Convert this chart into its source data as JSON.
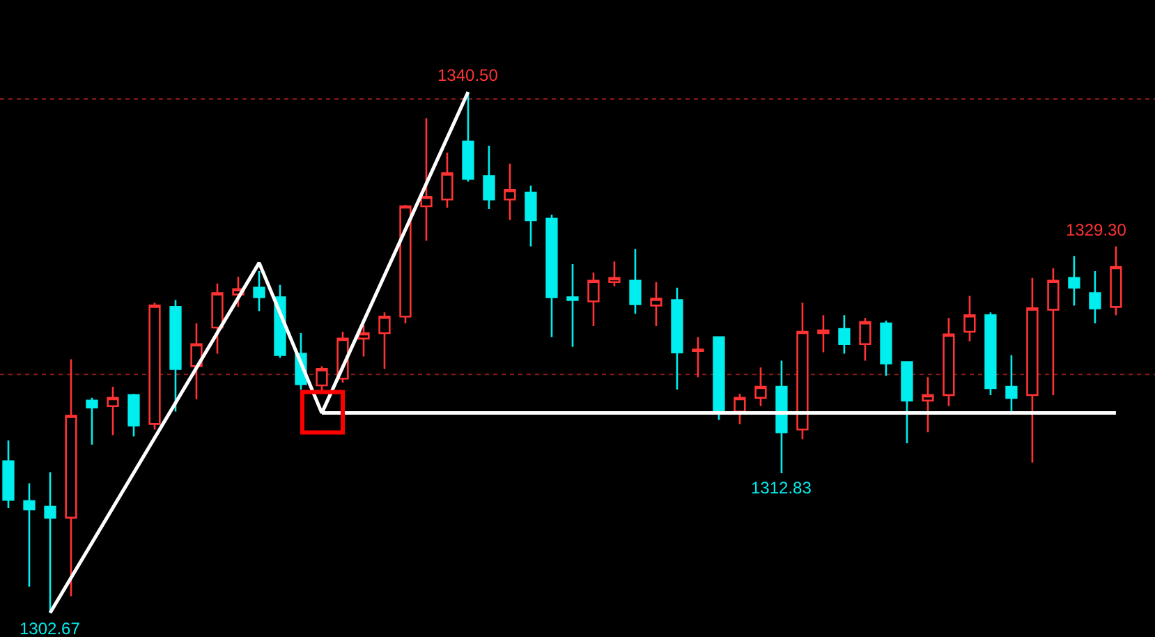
{
  "chart_data": {
    "type": "candlestick",
    "categories": [
      null,
      null,
      null,
      null,
      null,
      null,
      null,
      null,
      null,
      null,
      null,
      null,
      null,
      null,
      null,
      null,
      null,
      null,
      null,
      null,
      null,
      null,
      null,
      null,
      null,
      null,
      null,
      null,
      null,
      null,
      null,
      null,
      null,
      null,
      null,
      null,
      null,
      null,
      null,
      null,
      null,
      null,
      null,
      null,
      null,
      null,
      null,
      null,
      null,
      null,
      null,
      null,
      null,
      null
    ],
    "ohlc": [
      [
        1313.7,
        1315.2,
        1310.3,
        1310.9
      ],
      [
        1310.8,
        1312.1,
        1304.6,
        1310.2
      ],
      [
        1310.4,
        1312.9,
        1302.67,
        1309.6
      ],
      [
        1309.6,
        1321.1,
        1303.9,
        1317.0
      ],
      [
        1318.1,
        1318.3,
        1314.9,
        1317.6
      ],
      [
        1317.7,
        1319.1,
        1315.6,
        1318.3
      ],
      [
        1318.5,
        1318.6,
        1315.5,
        1316.3
      ],
      [
        1316.4,
        1325.2,
        1316.0,
        1325.0
      ],
      [
        1324.9,
        1325.4,
        1317.3,
        1320.4
      ],
      [
        1320.6,
        1323.7,
        1318.2,
        1322.2
      ],
      [
        1323.4,
        1326.6,
        1321.5,
        1325.9
      ],
      [
        1325.8,
        1327.1,
        1324.9,
        1326.2
      ],
      [
        1326.3,
        1327.5,
        1324.6,
        1325.6
      ],
      [
        1325.6,
        1326.5,
        1321.2,
        1321.4
      ],
      [
        1321.5,
        1323.0,
        1318.9,
        1319.3
      ],
      [
        1319.2,
        1320.6,
        1318.6,
        1320.4
      ],
      [
        1319.7,
        1323.1,
        1319.4,
        1322.6
      ],
      [
        1322.6,
        1323.6,
        1321.3,
        1323.0
      ],
      [
        1323.0,
        1324.5,
        1320.4,
        1324.2
      ],
      [
        1324.2,
        1332.3,
        1323.7,
        1332.2
      ],
      [
        1332.2,
        1338.6,
        1329.7,
        1332.9
      ],
      [
        1332.7,
        1336.1,
        1332.1,
        1334.6
      ],
      [
        1336.9,
        1340.5,
        1334.0,
        1334.2
      ],
      [
        1334.4,
        1336.6,
        1332.0,
        1332.7
      ],
      [
        1332.7,
        1335.3,
        1331.2,
        1333.4
      ],
      [
        1333.2,
        1333.7,
        1329.3,
        1331.2
      ],
      [
        1331.3,
        1331.6,
        1322.7,
        1325.6
      ],
      [
        1325.6,
        1328.0,
        1322.0,
        1325.4
      ],
      [
        1325.3,
        1327.4,
        1323.5,
        1326.8
      ],
      [
        1326.7,
        1328.2,
        1326.4,
        1327.0
      ],
      [
        1326.8,
        1329.1,
        1324.4,
        1325.1
      ],
      [
        1325.0,
        1326.7,
        1323.5,
        1325.5
      ],
      [
        1325.4,
        1326.3,
        1318.9,
        1321.6
      ],
      [
        1321.7,
        1322.7,
        1319.8,
        1321.8
      ],
      [
        1322.7,
        1322.7,
        1316.7,
        1317.3
      ],
      [
        1317.3,
        1318.6,
        1316.4,
        1318.3
      ],
      [
        1318.3,
        1320.5,
        1317.7,
        1319.1
      ],
      [
        1319.1,
        1321.0,
        1312.83,
        1315.8
      ],
      [
        1316.0,
        1325.2,
        1315.3,
        1323.1
      ],
      [
        1323.0,
        1324.3,
        1321.6,
        1323.2
      ],
      [
        1323.3,
        1324.3,
        1321.5,
        1322.2
      ],
      [
        1322.2,
        1324.1,
        1321.0,
        1323.8
      ],
      [
        1323.7,
        1323.9,
        1319.9,
        1320.8
      ],
      [
        1320.9,
        1320.9,
        1315.0,
        1318.1
      ],
      [
        1318.1,
        1319.8,
        1315.8,
        1318.5
      ],
      [
        1318.5,
        1324.1,
        1317.7,
        1322.9
      ],
      [
        1323.1,
        1325.7,
        1322.4,
        1324.3
      ],
      [
        1324.3,
        1324.5,
        1318.5,
        1319.0
      ],
      [
        1319.1,
        1321.4,
        1317.3,
        1318.3
      ],
      [
        1318.5,
        1327.0,
        1313.6,
        1324.8
      ],
      [
        1324.7,
        1327.7,
        1318.5,
        1326.8
      ],
      [
        1327.0,
        1328.6,
        1325.0,
        1326.3
      ],
      [
        1325.9,
        1327.5,
        1323.7,
        1324.8
      ],
      [
        1324.9,
        1329.3,
        1324.3,
        1327.8
      ]
    ],
    "colors": [
      "#00eeee",
      "#00eeee",
      "#00eeee",
      "#ff3333",
      "#00eeee",
      "#ff3333",
      "#00eeee",
      "#ff3333",
      "#00eeee",
      "#ff3333",
      "#ff3333",
      "#ff3333",
      "#00eeee",
      "#00eeee",
      "#00eeee",
      "#ff3333",
      "#ff3333",
      "#ff3333",
      "#ff3333",
      "#ff3333",
      "#ff3333",
      "#ff3333",
      "#00eeee",
      "#00eeee",
      "#ff3333",
      "#00eeee",
      "#00eeee",
      "#00eeee",
      "#ff3333",
      "#ff3333",
      "#00eeee",
      "#ff3333",
      "#00eeee",
      "#ff3333",
      "#00eeee",
      "#ff3333",
      "#ff3333",
      "#00eeee",
      "#ff3333",
      "#ff3333",
      "#00eeee",
      "#ff3333",
      "#00eeee",
      "#00eeee",
      "#ff3333",
      "#ff3333",
      "#ff3333",
      "#00eeee",
      "#00eeee",
      "#ff3333",
      "#ff3333",
      "#00eeee",
      "#00eeee",
      "#ff3333"
    ],
    "series": [
      {
        "type": "line",
        "color": "#ffffff",
        "values": [
          null,
          null,
          1302.7,
          null,
          null,
          null,
          null,
          null,
          null,
          null,
          null,
          null,
          1328.1,
          null,
          null,
          1317.2,
          null,
          null,
          null,
          null,
          null,
          null,
          1340.5,
          null,
          null,
          null,
          null,
          null,
          null,
          null,
          null,
          null,
          null,
          null,
          null,
          null,
          null,
          null,
          null,
          null,
          null,
          null,
          null,
          null,
          null,
          null,
          null,
          null,
          null,
          null,
          null,
          null,
          null,
          null
        ]
      },
      {
        "type": "line",
        "color": "#ffffff",
        "values": [
          null,
          null,
          null,
          null,
          null,
          null,
          null,
          null,
          null,
          null,
          null,
          null,
          null,
          null,
          null,
          1317.2,
          null,
          null,
          null,
          null,
          null,
          null,
          null,
          null,
          null,
          null,
          null,
          null,
          null,
          null,
          null,
          null,
          null,
          null,
          null,
          null,
          null,
          null,
          null,
          null,
          null,
          null,
          null,
          null,
          null,
          null,
          null,
          null,
          null,
          null,
          null,
          null,
          null,
          1317.2
        ]
      }
    ],
    "ref_lines": [
      {
        "axis": "y",
        "value": 1340,
        "color": "#8b1a1a",
        "line_style": "dotted"
      },
      {
        "axis": "y",
        "value": 1320,
        "color": "#8b1a1a",
        "line_style": "dotted"
      }
    ],
    "annotations": [
      "1340.50",
      "1302.67",
      "1312.83",
      "1329.30"
    ],
    "grid": false
  }
}
